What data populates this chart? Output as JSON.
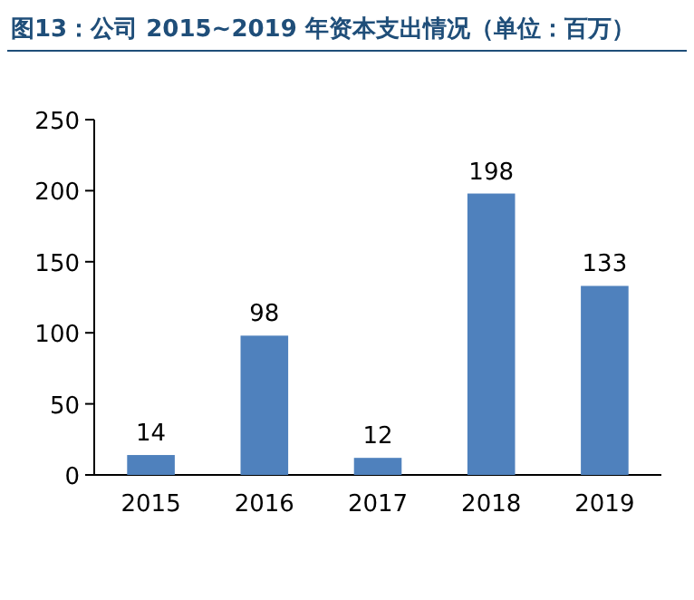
{
  "chart_data": {
    "type": "bar",
    "title": "图13：公司 2015~2019 年资本支出情况（单位：百万）",
    "categories": [
      "2015",
      "2016",
      "2017",
      "2018",
      "2019"
    ],
    "values": [
      14,
      98,
      12,
      198,
      133
    ],
    "color": "#4f81bd",
    "ylim": [
      0,
      250
    ],
    "yticks": [
      0,
      50,
      100,
      150,
      200,
      250
    ],
    "data_labels": true
  }
}
